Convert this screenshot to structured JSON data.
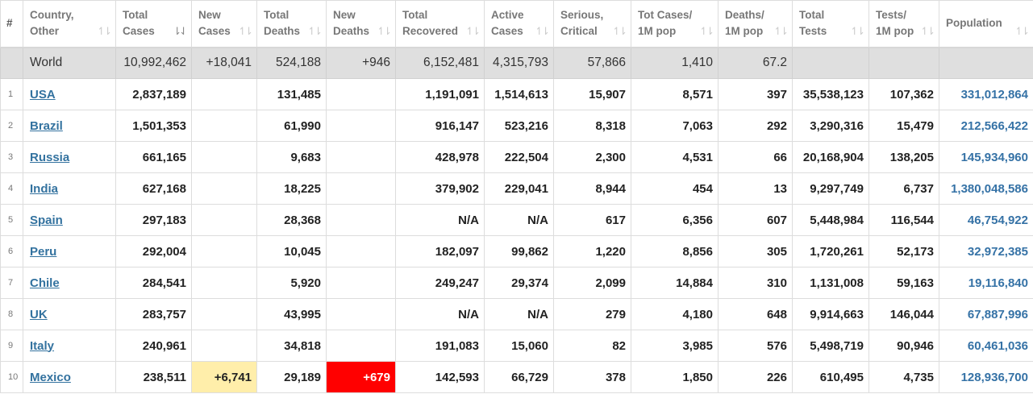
{
  "headers": [
    {
      "key": "idx",
      "l1": "#",
      "l2": ""
    },
    {
      "key": "country",
      "l1": "Country,",
      "l2": "Other"
    },
    {
      "key": "total_cases",
      "l1": "Total",
      "l2": "Cases"
    },
    {
      "key": "new_cases",
      "l1": "New",
      "l2": "Cases"
    },
    {
      "key": "total_deaths",
      "l1": "Total",
      "l2": "Deaths"
    },
    {
      "key": "new_deaths",
      "l1": "New",
      "l2": "Deaths"
    },
    {
      "key": "total_recovered",
      "l1": "Total",
      "l2": "Recovered"
    },
    {
      "key": "active_cases",
      "l1": "Active",
      "l2": "Cases"
    },
    {
      "key": "serious",
      "l1": "Serious,",
      "l2": "Critical"
    },
    {
      "key": "cases_1m",
      "l1": "Tot Cases/",
      "l2": "1M pop"
    },
    {
      "key": "deaths_1m",
      "l1": "Deaths/",
      "l2": "1M pop"
    },
    {
      "key": "total_tests",
      "l1": "Total",
      "l2": "Tests"
    },
    {
      "key": "tests_1m",
      "l1": "Tests/",
      "l2": "1M pop"
    },
    {
      "key": "population",
      "l1": "Population",
      "l2": ""
    }
  ],
  "sort_icon": "sort-arrows-icon",
  "active_sort_column": "total_cases",
  "world": {
    "country": "World",
    "total_cases": "10,992,462",
    "new_cases": "+18,041",
    "total_deaths": "524,188",
    "new_deaths": "+946",
    "total_recovered": "6,152,481",
    "active_cases": "4,315,793",
    "serious": "57,866",
    "cases_1m": "1,410",
    "deaths_1m": "67.2",
    "total_tests": "",
    "tests_1m": "",
    "population": ""
  },
  "rows": [
    {
      "idx": "1",
      "country": "USA",
      "total_cases": "2,837,189",
      "new_cases": "",
      "total_deaths": "131,485",
      "new_deaths": "",
      "total_recovered": "1,191,091",
      "active_cases": "1,514,613",
      "serious": "15,907",
      "cases_1m": "8,571",
      "deaths_1m": "397",
      "total_tests": "35,538,123",
      "tests_1m": "107,362",
      "population": "331,012,864"
    },
    {
      "idx": "2",
      "country": "Brazil",
      "total_cases": "1,501,353",
      "new_cases": "",
      "total_deaths": "61,990",
      "new_deaths": "",
      "total_recovered": "916,147",
      "active_cases": "523,216",
      "serious": "8,318",
      "cases_1m": "7,063",
      "deaths_1m": "292",
      "total_tests": "3,290,316",
      "tests_1m": "15,479",
      "population": "212,566,422"
    },
    {
      "idx": "3",
      "country": "Russia",
      "total_cases": "661,165",
      "new_cases": "",
      "total_deaths": "9,683",
      "new_deaths": "",
      "total_recovered": "428,978",
      "active_cases": "222,504",
      "serious": "2,300",
      "cases_1m": "4,531",
      "deaths_1m": "66",
      "total_tests": "20,168,904",
      "tests_1m": "138,205",
      "population": "145,934,960"
    },
    {
      "idx": "4",
      "country": "India",
      "total_cases": "627,168",
      "new_cases": "",
      "total_deaths": "18,225",
      "new_deaths": "",
      "total_recovered": "379,902",
      "active_cases": "229,041",
      "serious": "8,944",
      "cases_1m": "454",
      "deaths_1m": "13",
      "total_tests": "9,297,749",
      "tests_1m": "6,737",
      "population": "1,380,048,586"
    },
    {
      "idx": "5",
      "country": "Spain",
      "total_cases": "297,183",
      "new_cases": "",
      "total_deaths": "28,368",
      "new_deaths": "",
      "total_recovered": "N/A",
      "active_cases": "N/A",
      "serious": "617",
      "cases_1m": "6,356",
      "deaths_1m": "607",
      "total_tests": "5,448,984",
      "tests_1m": "116,544",
      "population": "46,754,922"
    },
    {
      "idx": "6",
      "country": "Peru",
      "total_cases": "292,004",
      "new_cases": "",
      "total_deaths": "10,045",
      "new_deaths": "",
      "total_recovered": "182,097",
      "active_cases": "99,862",
      "serious": "1,220",
      "cases_1m": "8,856",
      "deaths_1m": "305",
      "total_tests": "1,720,261",
      "tests_1m": "52,173",
      "population": "32,972,385"
    },
    {
      "idx": "7",
      "country": "Chile",
      "total_cases": "284,541",
      "new_cases": "",
      "total_deaths": "5,920",
      "new_deaths": "",
      "total_recovered": "249,247",
      "active_cases": "29,374",
      "serious": "2,099",
      "cases_1m": "14,884",
      "deaths_1m": "310",
      "total_tests": "1,131,008",
      "tests_1m": "59,163",
      "population": "19,116,840"
    },
    {
      "idx": "8",
      "country": "UK",
      "total_cases": "283,757",
      "new_cases": "",
      "total_deaths": "43,995",
      "new_deaths": "",
      "total_recovered": "N/A",
      "active_cases": "N/A",
      "serious": "279",
      "cases_1m": "4,180",
      "deaths_1m": "648",
      "total_tests": "9,914,663",
      "tests_1m": "146,044",
      "population": "67,887,996"
    },
    {
      "idx": "9",
      "country": "Italy",
      "total_cases": "240,961",
      "new_cases": "",
      "total_deaths": "34,818",
      "new_deaths": "",
      "total_recovered": "191,083",
      "active_cases": "15,060",
      "serious": "82",
      "cases_1m": "3,985",
      "deaths_1m": "576",
      "total_tests": "5,498,719",
      "tests_1m": "90,946",
      "population": "60,461,036"
    },
    {
      "idx": "10",
      "country": "Mexico",
      "total_cases": "238,511",
      "new_cases": "+6,741",
      "total_deaths": "29,189",
      "new_deaths": "+679",
      "total_recovered": "142,593",
      "active_cases": "66,729",
      "serious": "378",
      "cases_1m": "1,850",
      "deaths_1m": "226",
      "total_tests": "610,495",
      "tests_1m": "4,735",
      "population": "128,936,700"
    }
  ],
  "highlight_colors": {
    "new_cases": "#ffeeaa",
    "new_deaths": "#ff0000"
  }
}
